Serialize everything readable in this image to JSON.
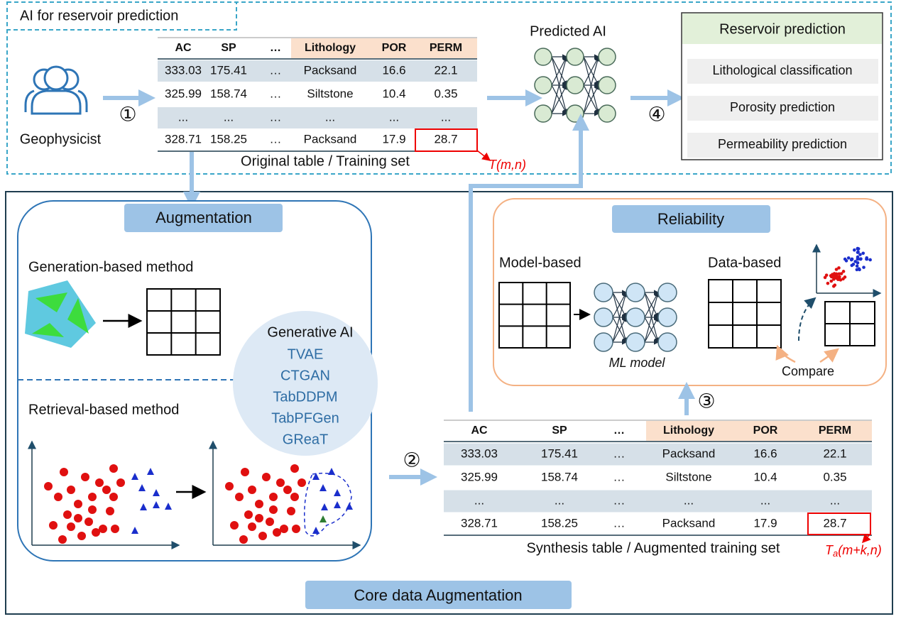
{
  "top": {
    "title": "AI for reservoir prediction",
    "user_label": "Geophysicist",
    "step1": "①",
    "step4": "④",
    "predicted_ai": "Predicted AI",
    "original_table": {
      "headers": [
        "AC",
        "SP",
        "…",
        "Lithology",
        "POR",
        "PERM"
      ],
      "rows": [
        [
          "333.03",
          "175.41",
          "…",
          "Packsand",
          "16.6",
          "22.1"
        ],
        [
          "325.99",
          "158.74",
          "…",
          "Siltstone",
          "10.4",
          "0.35"
        ],
        [
          "...",
          "...",
          "…",
          "...",
          "...",
          "..."
        ],
        [
          "328.71",
          "158.25",
          "…",
          "Packsand",
          "17.9",
          "28.7"
        ]
      ],
      "caption": "Original table / Training set",
      "annotation": "T(m,n)"
    },
    "reservoir": {
      "title": "Reservoir prediction",
      "items": [
        "Lithological classification",
        "Porosity prediction",
        "Permeability prediction"
      ]
    }
  },
  "augmentation": {
    "title": "Augmentation",
    "generation": "Generation-based method",
    "retrieval": "Retrieval-based method",
    "generative_ai": {
      "title": "Generative AI",
      "methods": [
        "TVAE",
        "CTGAN",
        "TabDDPM",
        "TabPFGen",
        "GReaT"
      ]
    }
  },
  "step2": "②",
  "step3": "③",
  "synthesis_table": {
    "headers": [
      "AC",
      "SP",
      "…",
      "Lithology",
      "POR",
      "PERM"
    ],
    "rows": [
      [
        "333.03",
        "175.41",
        "…",
        "Packsand",
        "16.6",
        "22.1"
      ],
      [
        "325.99",
        "158.74",
        "…",
        "Siltstone",
        "10.4",
        "0.35"
      ],
      [
        "...",
        "...",
        "…",
        "...",
        "...",
        "..."
      ],
      [
        "328.71",
        "158.25",
        "…",
        "Packsand",
        "17.9",
        "28.7"
      ]
    ],
    "caption": "Synthesis table / Augmented training set",
    "annotation": {
      "main": "T",
      "sub": "a",
      "rest": "(m+k,n)"
    }
  },
  "reliability": {
    "title": "Reliability",
    "model_based": "Model-based",
    "data_based": "Data-based",
    "ml_model": "ML model",
    "compare": "Compare"
  },
  "core_title": "Core data Augmentation"
}
